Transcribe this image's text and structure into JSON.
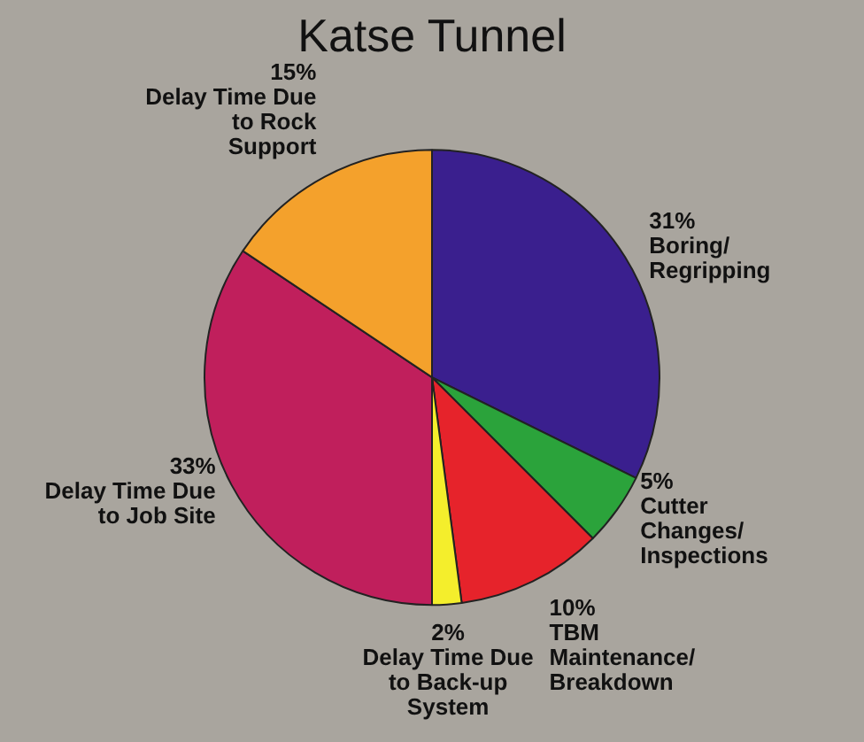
{
  "chart_data": {
    "type": "pie",
    "title": "Katse Tunnel",
    "categories": [
      "Boring/Regripping",
      "Cutter Changes/Inspections",
      "TBM Maintenance/Breakdown",
      "Delay Time Due to Back-up System",
      "Delay Time Due to Job Site",
      "Delay Time Due to Rock Support"
    ],
    "values": [
      31,
      5,
      10,
      2,
      33,
      15
    ],
    "value_labels": [
      "31%",
      "5%",
      "10%",
      "2%",
      "33%",
      "15%"
    ],
    "colors": [
      "#3a1f8e",
      "#2ba33b",
      "#e6232b",
      "#f4ee2c",
      "#c01f5c",
      "#f4a12c"
    ]
  }
}
